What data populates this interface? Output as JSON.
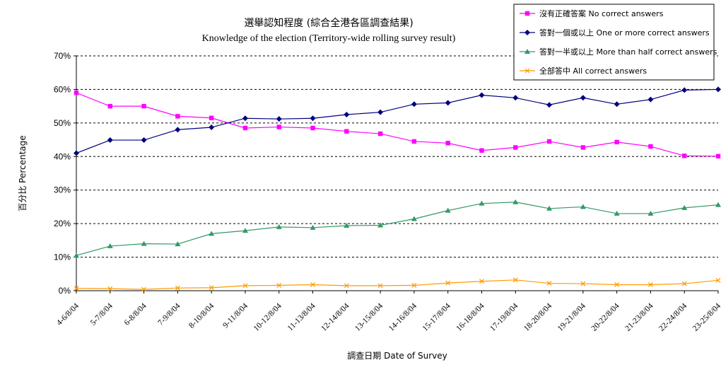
{
  "chart_data": {
    "type": "line",
    "title": "選舉認知程度 (綜合全港各區調查結果)",
    "subtitle": "Knowledge of the election (Territory-wide rolling survey result)",
    "xlabel": "調查日期 Date of Survey",
    "ylabel": "百分比 Percentage",
    "ylim": [
      0,
      70
    ],
    "yticks": [
      "0%",
      "10%",
      "20%",
      "30%",
      "40%",
      "50%",
      "60%",
      "70%"
    ],
    "grid": true,
    "legend_position": "top-right",
    "categories": [
      "4-6/8/04",
      "5-7/8/04",
      "6-8/8/04",
      "7-9/8/04",
      "8-10/8/04",
      "9-11/8/04",
      "10-12/8/04",
      "11-13/8/04",
      "12-14/8/04",
      "13-15/8/04",
      "14-16/8/04",
      "15-17/8/04",
      "16-18/8/04",
      "17-19/8/04",
      "18-20/8/04",
      "19-21/8/04",
      "20-22/8/04",
      "21-23/8/04",
      "22-24/8/04",
      "23-25/8/04"
    ],
    "series": [
      {
        "name": "沒有正確答案 No correct answers",
        "color": "#ff00ff",
        "marker": "square",
        "values": [
          59,
          55,
          55,
          52,
          51.5,
          48.5,
          48.8,
          48.5,
          47.5,
          46.8,
          44.5,
          44,
          41.8,
          42.7,
          44.5,
          42.7,
          44.3,
          43,
          40.2,
          40.1
        ]
      },
      {
        "name": "答對一個或以上 One or more correct answers",
        "color": "#000080",
        "marker": "diamond",
        "values": [
          41,
          44.9,
          44.9,
          48,
          48.7,
          51.4,
          51.2,
          51.4,
          52.5,
          53.2,
          55.6,
          56,
          58.3,
          57.5,
          55.4,
          57.5,
          55.6,
          57,
          59.8,
          60
        ]
      },
      {
        "name": "答對一半或以上 More than half correct answers",
        "color": "#339966",
        "marker": "triangle",
        "values": [
          10.5,
          13.3,
          14,
          13.9,
          17,
          17.9,
          19,
          18.8,
          19.4,
          19.5,
          21.4,
          23.9,
          26,
          26.4,
          24.5,
          25,
          23,
          23,
          24.7,
          25.6
        ]
      },
      {
        "name": "全部答中 All correct answers",
        "color": "#ff9900",
        "marker": "x",
        "values": [
          0.7,
          0.6,
          0.4,
          0.8,
          0.9,
          1.5,
          1.6,
          1.8,
          1.5,
          1.5,
          1.6,
          2.3,
          2.8,
          3.2,
          2.2,
          2.1,
          1.8,
          1.8,
          2.1,
          3.1
        ]
      }
    ]
  }
}
